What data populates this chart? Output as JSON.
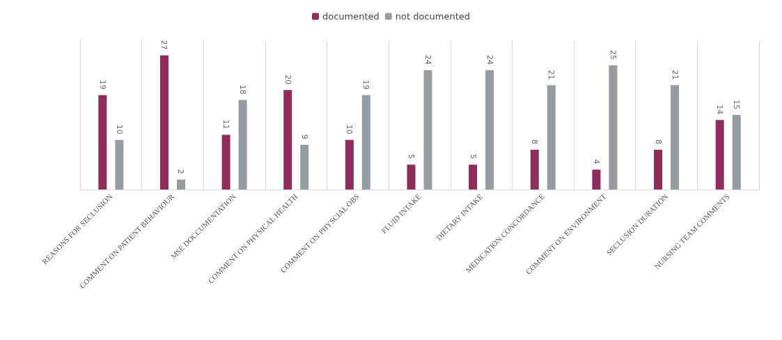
{
  "chart_data": {
    "type": "bar",
    "categories": [
      "REASONS FOR SECLUSION",
      "COMMENT ON PATIENT BEHAVIOUR",
      "MSE DOCCUMENTATION",
      "COMMENT ON PHYSICAL HEALTH",
      "COMMENT ON PHYSCIAL OBS",
      "FLUID INTAKE",
      "DIETARY INTAKE",
      "MEDICATION CONCORDANCE",
      "COMMENT ON ENVIRONMENT",
      "SECLUSION DURATION",
      "NURSING TEAM COMMENTS"
    ],
    "series": [
      {
        "name": "documented",
        "color": "#8e2c5c",
        "values": [
          19,
          27,
          11,
          20,
          10,
          5,
          5,
          8,
          4,
          8,
          14
        ]
      },
      {
        "name": "not documented",
        "color": "#979ca3",
        "values": [
          10,
          2,
          18,
          9,
          19,
          24,
          24,
          21,
          25,
          21,
          15
        ]
      }
    ],
    "data_labels": true,
    "grid": "x",
    "legend": "top"
  }
}
